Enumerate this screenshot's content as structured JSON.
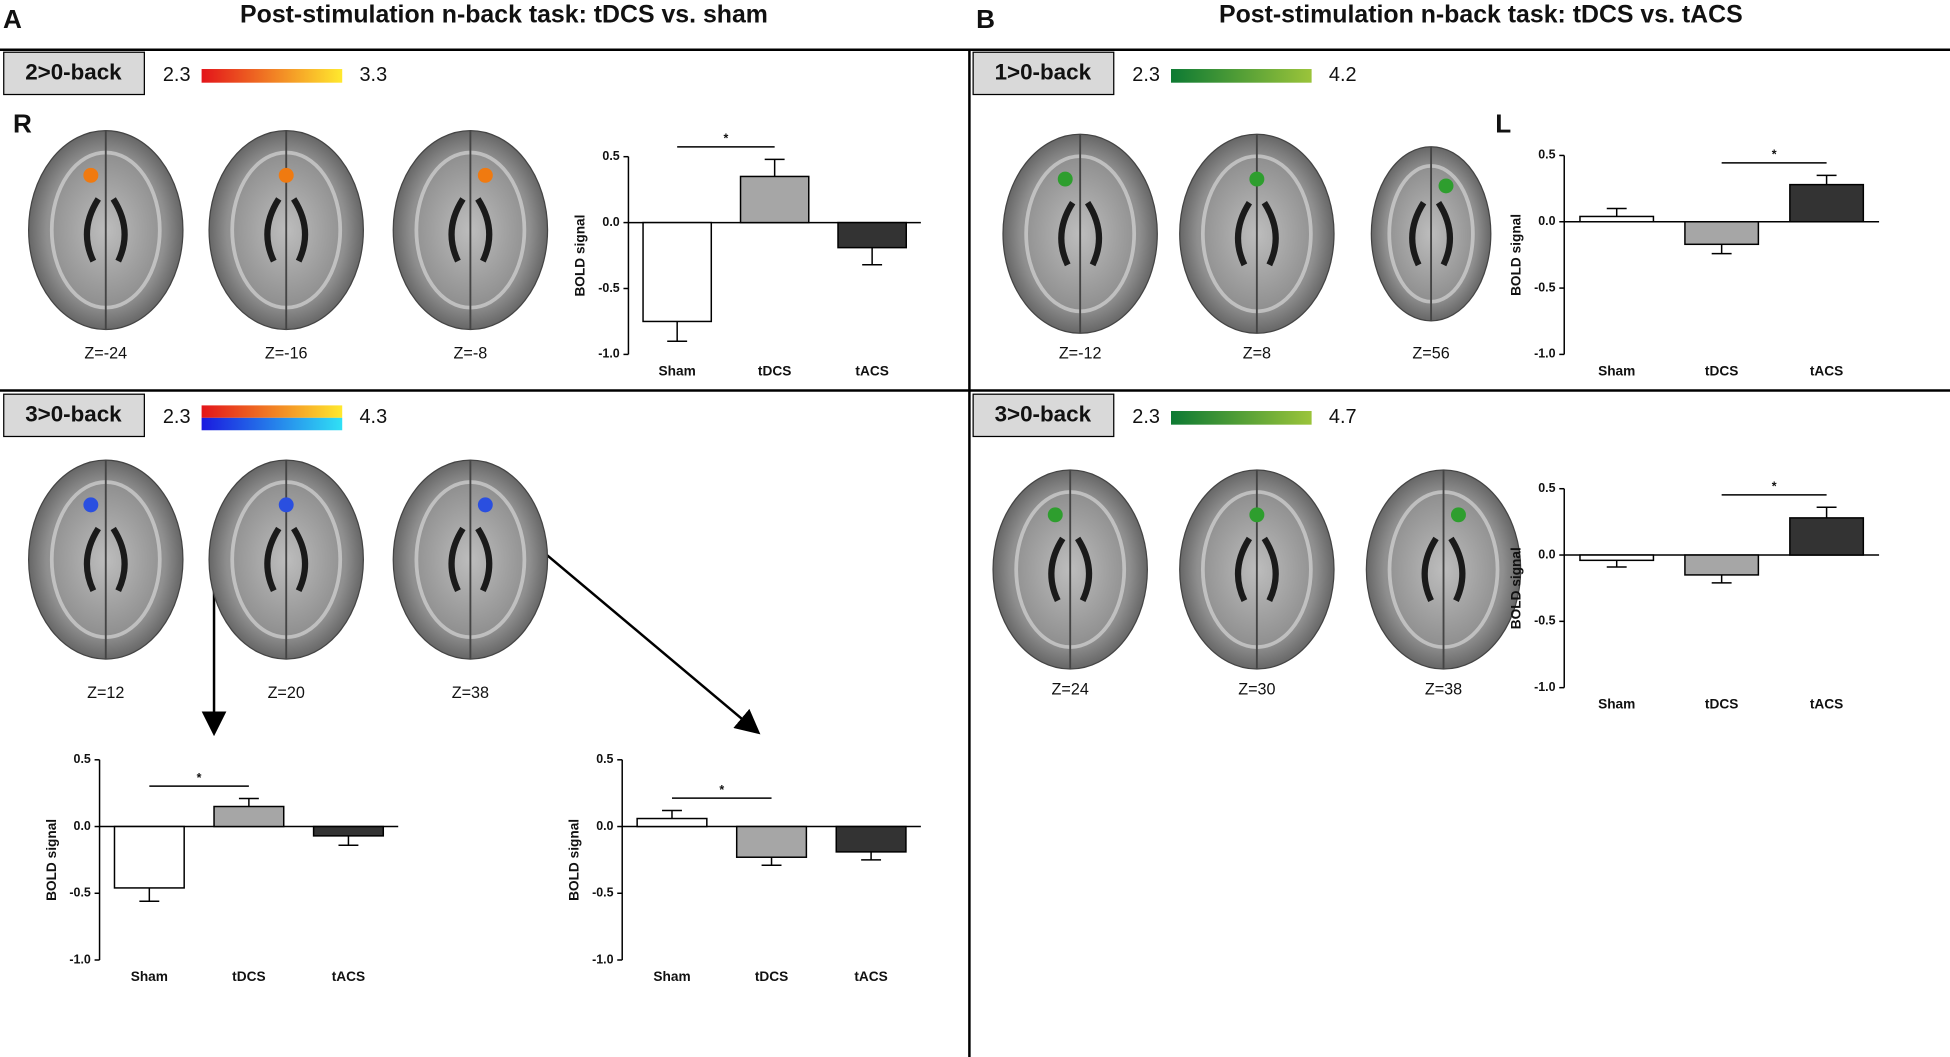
{
  "figure": {
    "panels": [
      {
        "label": "A",
        "title": "Post-stimulation n-back task: tDCS vs. sham"
      },
      {
        "label": "B",
        "title": "Post-stimulation n-back task: tDCS vs. tACS"
      }
    ],
    "contrasts": [
      {
        "name": "2>0-back",
        "min": 2.3,
        "max": 3.3,
        "gradients": [
          [
            "#e3141a",
            "#ffe92e"
          ]
        ],
        "slices": [
          "Z=-24",
          "Z=-16",
          "Z=-8"
        ]
      },
      {
        "name": "3>0-back",
        "min": 2.3,
        "max": 4.3,
        "gradients": [
          [
            "#e3141a",
            "#ffe92e"
          ],
          [
            "#1a1adf",
            "#30e0f5"
          ]
        ],
        "slices": [
          "Z=12",
          "Z=20",
          "Z=38"
        ]
      },
      {
        "name": "1>0-back",
        "min": 2.3,
        "max": 4.2,
        "gradients": [
          [
            "#0d7a33",
            "#9bc43a"
          ]
        ],
        "slices": [
          "Z=-12",
          "Z=8",
          "Z=56"
        ]
      },
      {
        "name": "3>0-back",
        "min": 2.3,
        "max": 4.7,
        "gradients": [
          [
            "#0d7a33",
            "#9bc43a"
          ]
        ],
        "slices": [
          "Z=24",
          "Z=30",
          "Z=38"
        ]
      }
    ],
    "hemispheres": [
      "R",
      "L"
    ]
  },
  "chart_data": [
    {
      "type": "bar",
      "categories": [
        "Sham",
        "tDCS",
        "tACS"
      ],
      "values": [
        -0.75,
        0.35,
        -0.19
      ],
      "errors": [
        0.15,
        0.13,
        0.13
      ],
      "colors": [
        "#ffffff",
        "#a6a6a6",
        "#333333"
      ],
      "y_label": "BOLD signal",
      "ylim": [
        -1.0,
        0.5
      ],
      "yticks": [
        0.5,
        {
          "value": 0,
          "label": "0.0"
        },
        -0.5,
        {
          "value": -1,
          "label": "-1.0"
        }
      ],
      "significance": {
        "text": "*",
        "between": [
          "Sham",
          "tDCS"
        ]
      }
    },
    {
      "type": "bar",
      "categories": [
        "Sham",
        "tDCS",
        "tACS"
      ],
      "values": [
        0.04,
        -0.17,
        0.28
      ],
      "errors": [
        0.06,
        0.07,
        0.07
      ],
      "colors": [
        "#ffffff",
        "#a6a6a6",
        "#333333"
      ],
      "y_label": "BOLD signal",
      "ylim": [
        -1.0,
        0.5
      ],
      "yticks": [
        0.5,
        {
          "value": 0,
          "label": "0.0"
        },
        -0.5,
        {
          "value": -1,
          "label": "-1.0"
        }
      ],
      "significance": {
        "text": "*",
        "between": [
          "tDCS",
          "tACS"
        ]
      }
    },
    {
      "type": "bar",
      "categories": [
        "Sham",
        "tDCS",
        "tACS"
      ],
      "values": [
        -0.04,
        -0.15,
        0.28
      ],
      "errors": [
        0.05,
        0.06,
        0.08
      ],
      "colors": [
        "#ffffff",
        "#a6a6a6",
        "#333333"
      ],
      "y_label": "BOLD signal",
      "ylim": [
        -1.0,
        0.5
      ],
      "yticks": [
        0.5,
        {
          "value": 0,
          "label": "0.0"
        },
        -0.5,
        {
          "value": -1,
          "label": "-1.0"
        }
      ],
      "significance": {
        "text": "*",
        "between": [
          "tDCS",
          "tACS"
        ]
      }
    },
    {
      "type": "bar",
      "categories": [
        "Sham",
        "tDCS",
        "tACS"
      ],
      "values": [
        -0.46,
        0.15,
        -0.07
      ],
      "errors": [
        0.1,
        0.06,
        0.07
      ],
      "colors": [
        "#ffffff",
        "#a6a6a6",
        "#333333"
      ],
      "y_label": "BOLD signal",
      "ylim": [
        -1.0,
        0.5
      ],
      "yticks": [
        0.5,
        {
          "value": 0,
          "label": "0.0"
        },
        -0.5,
        {
          "value": -1,
          "label": "-1.0"
        }
      ],
      "significance": {
        "text": "*",
        "between": [
          "Sham",
          "tDCS"
        ]
      }
    },
    {
      "type": "bar",
      "categories": [
        "Sham",
        "tDCS",
        "tACS"
      ],
      "values": [
        0.06,
        -0.23,
        -0.19
      ],
      "errors": [
        0.06,
        0.06,
        0.06
      ],
      "colors": [
        "#ffffff",
        "#a6a6a6",
        "#333333"
      ],
      "y_label": "BOLD signal",
      "ylim": [
        -1.0,
        0.5
      ],
      "yticks": [
        0.5,
        {
          "value": 0,
          "label": "0.0"
        },
        -0.5,
        {
          "value": -1,
          "label": "-1.0"
        }
      ],
      "significance": {
        "text": "*",
        "between": [
          "Sham",
          "tDCS"
        ]
      }
    }
  ]
}
